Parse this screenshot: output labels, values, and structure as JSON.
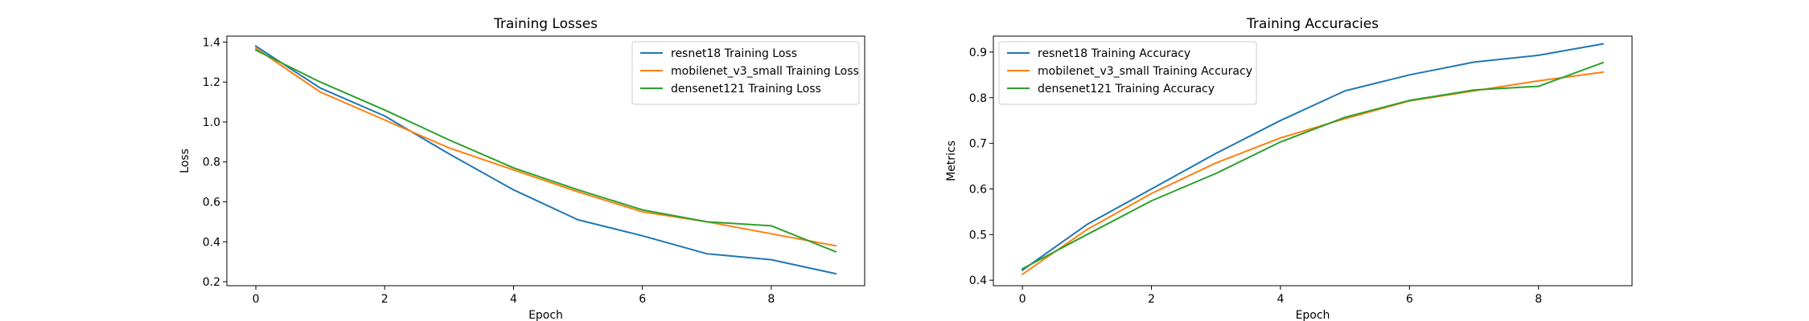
{
  "chart_data": [
    {
      "type": "line",
      "title": "Training Losses",
      "xlabel": "Epoch",
      "ylabel": "Loss",
      "x": [
        0,
        1,
        2,
        3,
        4,
        5,
        6,
        7,
        8,
        9
      ],
      "xlim": [
        -0.45,
        9.45
      ],
      "ylim": [
        0.18,
        1.43
      ],
      "xticks": [
        0,
        2,
        4,
        6,
        8
      ],
      "yticks": [
        0.2,
        0.4,
        0.6,
        0.8,
        1.0,
        1.2,
        1.4
      ],
      "ytick_labels": [
        "0.2",
        "0.4",
        "0.6",
        "0.8",
        "1.0",
        "1.2",
        "1.4"
      ],
      "grid": false,
      "legend": "top-right",
      "series": [
        {
          "name": "resnet18 Training Loss",
          "color": "#1f77b4",
          "values": [
            1.38,
            1.17,
            1.03,
            0.84,
            0.66,
            0.51,
            0.43,
            0.34,
            0.31,
            0.24
          ]
        },
        {
          "name": "mobilenet_v3_small Training Loss",
          "color": "#ff7f0e",
          "values": [
            1.37,
            1.15,
            1.01,
            0.87,
            0.76,
            0.65,
            0.55,
            0.5,
            0.44,
            0.38
          ]
        },
        {
          "name": "densenet121 Training Loss",
          "color": "#2ca02c",
          "values": [
            1.36,
            1.2,
            1.06,
            0.91,
            0.77,
            0.66,
            0.56,
            0.5,
            0.48,
            0.35
          ]
        }
      ]
    },
    {
      "type": "line",
      "title": "Training Accuracies",
      "xlabel": "Epoch",
      "ylabel": "Metrics",
      "x": [
        0,
        1,
        2,
        3,
        4,
        5,
        6,
        7,
        8,
        9
      ],
      "xlim": [
        -0.45,
        9.45
      ],
      "ylim": [
        0.388,
        0.935
      ],
      "xticks": [
        0,
        2,
        4,
        6,
        8
      ],
      "yticks": [
        0.4,
        0.5,
        0.6,
        0.7,
        0.8,
        0.9
      ],
      "ytick_labels": [
        "0.4",
        "0.5",
        "0.6",
        "0.7",
        "0.8",
        "0.9"
      ],
      "grid": false,
      "legend": "top-left",
      "series": [
        {
          "name": "resnet18 Training Accuracy",
          "color": "#1f77b4",
          "values": [
            0.422,
            0.522,
            0.6,
            0.678,
            0.75,
            0.815,
            0.85,
            0.878,
            0.893,
            0.918
          ]
        },
        {
          "name": "mobilenet_v3_small Training Accuracy",
          "color": "#ff7f0e",
          "values": [
            0.413,
            0.511,
            0.59,
            0.657,
            0.712,
            0.754,
            0.793,
            0.815,
            0.837,
            0.856
          ]
        },
        {
          "name": "densenet121 Training Accuracy",
          "color": "#2ca02c",
          "values": [
            0.425,
            0.5,
            0.574,
            0.634,
            0.703,
            0.757,
            0.794,
            0.817,
            0.825,
            0.877
          ]
        }
      ]
    }
  ]
}
